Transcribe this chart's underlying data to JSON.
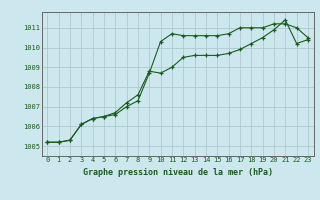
{
  "title": "Graphe pression niveau de la mer (hPa)",
  "bg_color": "#cce8ee",
  "grid_color": "#b0c8cc",
  "line_color": "#1a5c1a",
  "border_color": "#666666",
  "x_labels": [
    "0",
    "1",
    "2",
    "3",
    "4",
    "5",
    "6",
    "7",
    "8",
    "9",
    "10",
    "11",
    "12",
    "13",
    "14",
    "15",
    "16",
    "17",
    "18",
    "19",
    "20",
    "21",
    "22",
    "23"
  ],
  "xlim": [
    -0.5,
    23.5
  ],
  "ylim": [
    1004.5,
    1011.8
  ],
  "yticks": [
    1005,
    1006,
    1007,
    1008,
    1009,
    1010,
    1011
  ],
  "series1": [
    1005.2,
    1005.2,
    1005.3,
    1006.1,
    1006.4,
    1006.5,
    1006.6,
    1007.0,
    1007.3,
    1008.7,
    1010.3,
    1010.7,
    1010.6,
    1010.6,
    1010.6,
    1010.6,
    1010.7,
    1011.0,
    1011.0,
    1011.0,
    1011.2,
    1011.2,
    1011.0,
    1010.5
  ],
  "series2": [
    1005.2,
    1005.2,
    1005.3,
    1006.1,
    1006.4,
    1006.5,
    1006.7,
    1007.2,
    1007.6,
    1008.8,
    1008.7,
    1009.0,
    1009.5,
    1009.6,
    1009.6,
    1009.6,
    1009.7,
    1009.9,
    1010.2,
    1010.5,
    1010.9,
    1011.4,
    1010.2,
    1010.4
  ]
}
